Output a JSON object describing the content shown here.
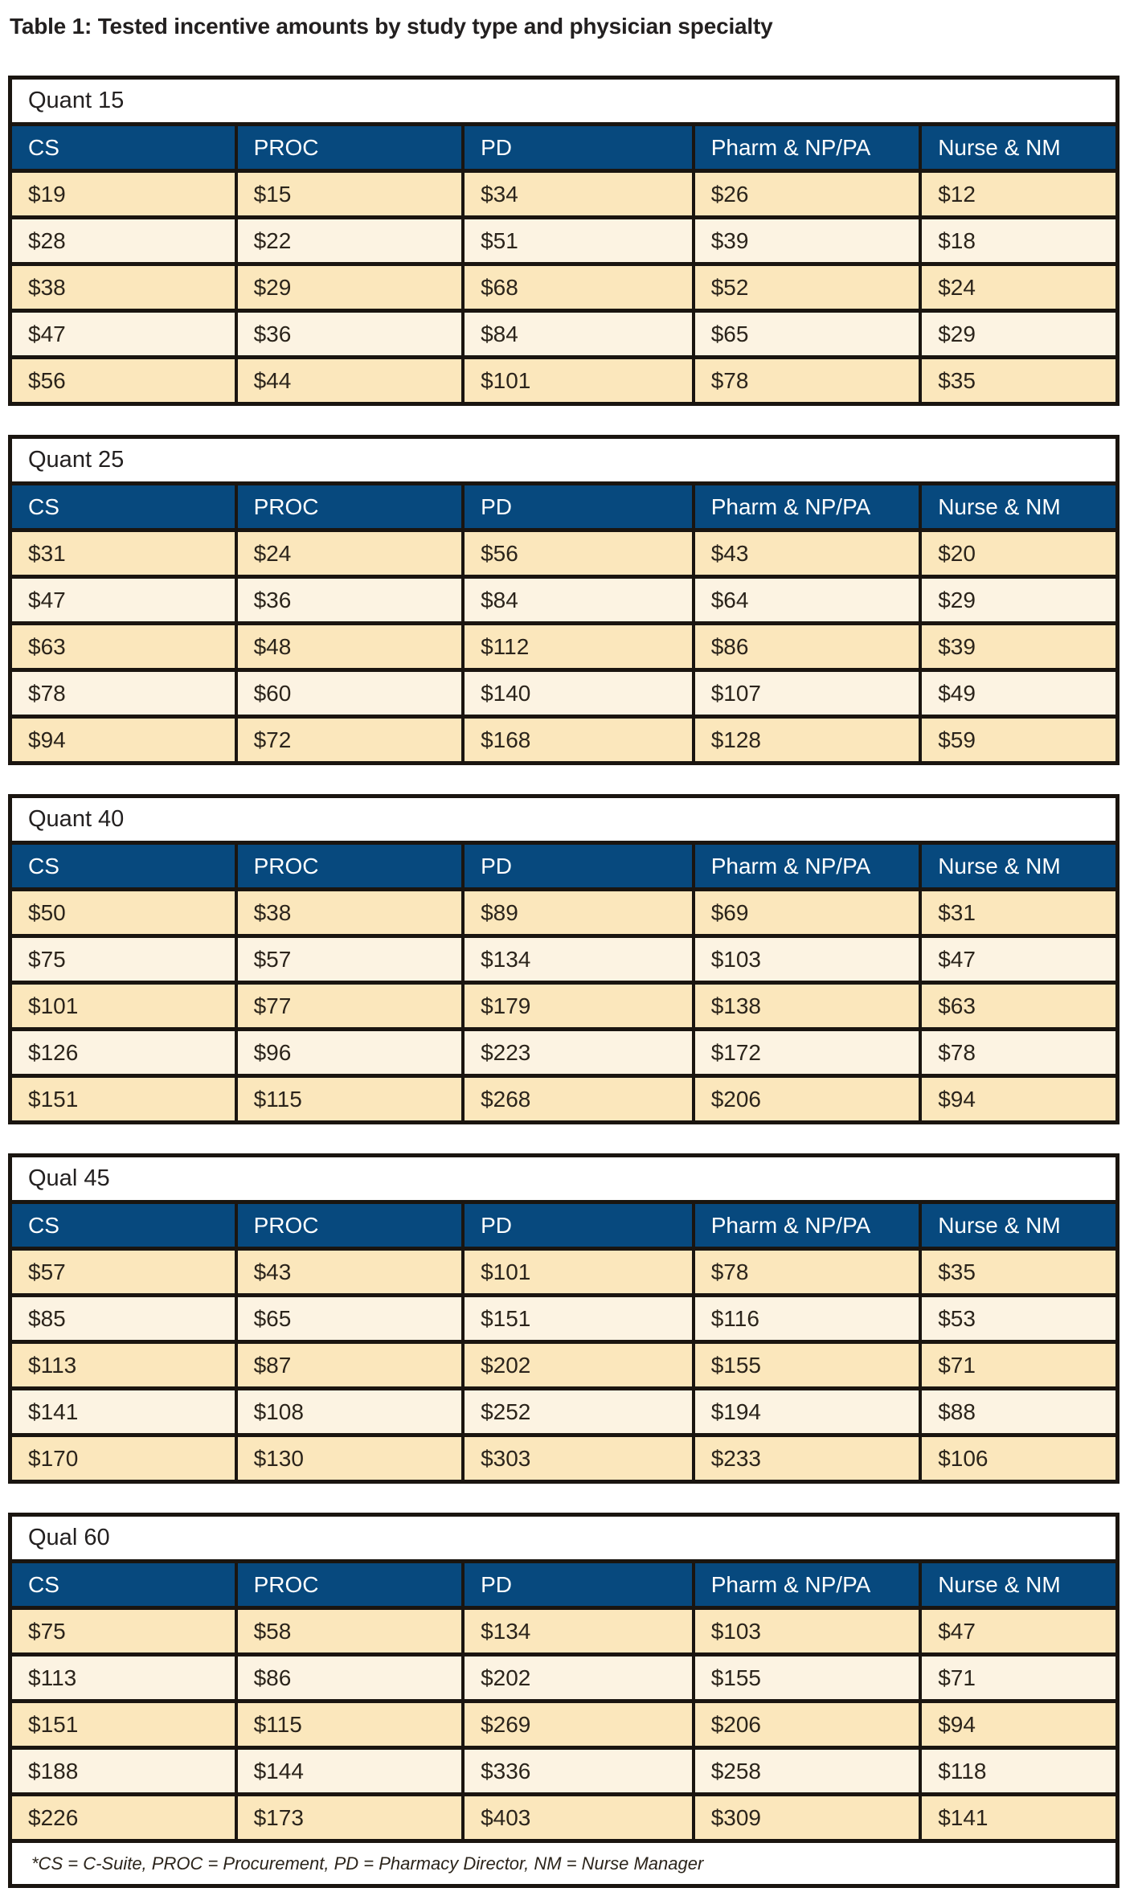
{
  "title": "Table 1: Tested incentive amounts by study type and physician specialty",
  "columns": [
    "CS",
    "PROC",
    "PD",
    "Pharm & NP/PA",
    "Nurse & NM"
  ],
  "tables": [
    {
      "label": "Quant 15",
      "rows": [
        [
          "$19",
          "$15",
          "$34",
          "$26",
          "$12"
        ],
        [
          "$28",
          "$22",
          "$51",
          "$39",
          "$18"
        ],
        [
          "$38",
          "$29",
          "$68",
          "$52",
          "$24"
        ],
        [
          "$47",
          "$36",
          "$84",
          "$65",
          "$29"
        ],
        [
          "$56",
          "$44",
          "$101",
          "$78",
          "$35"
        ]
      ]
    },
    {
      "label": "Quant 25",
      "rows": [
        [
          "$31",
          "$24",
          "$56",
          "$43",
          "$20"
        ],
        [
          "$47",
          "$36",
          "$84",
          "$64",
          "$29"
        ],
        [
          "$63",
          "$48",
          "$112",
          "$86",
          "$39"
        ],
        [
          "$78",
          "$60",
          "$140",
          "$107",
          "$49"
        ],
        [
          "$94",
          "$72",
          "$168",
          "$128",
          "$59"
        ]
      ]
    },
    {
      "label": "Quant 40",
      "rows": [
        [
          "$50",
          "$38",
          "$89",
          "$69",
          "$31"
        ],
        [
          "$75",
          "$57",
          "$134",
          "$103",
          "$47"
        ],
        [
          "$101",
          "$77",
          "$179",
          "$138",
          "$63"
        ],
        [
          "$126",
          "$96",
          "$223",
          "$172",
          "$78"
        ],
        [
          "$151",
          "$115",
          "$268",
          "$206",
          "$94"
        ]
      ]
    },
    {
      "label": "Qual 45",
      "rows": [
        [
          "$57",
          "$43",
          "$101",
          "$78",
          "$35"
        ],
        [
          "$85",
          "$65",
          "$151",
          "$116",
          "$53"
        ],
        [
          "$113",
          "$87",
          "$202",
          "$155",
          "$71"
        ],
        [
          "$141",
          "$108",
          "$252",
          "$194",
          "$88"
        ],
        [
          "$170",
          "$130",
          "$303",
          "$233",
          "$106"
        ]
      ]
    },
    {
      "label": "Qual 60",
      "rows": [
        [
          "$75",
          "$58",
          "$134",
          "$103",
          "$47"
        ],
        [
          "$113",
          "$86",
          "$202",
          "$155",
          "$71"
        ],
        [
          "$151",
          "$115",
          "$269",
          "$206",
          "$94"
        ],
        [
          "$188",
          "$144",
          "$336",
          "$258",
          "$118"
        ],
        [
          "$226",
          "$173",
          "$403",
          "$309",
          "$141"
        ]
      ],
      "footnote": "*CS = C-Suite, PROC = Procurement, PD = Pharmacy Director, NM = Nurse Manager"
    }
  ],
  "colors": {
    "header_blue": "#07497e",
    "row_tan": "#fbe7bc",
    "row_cream": "#fcf3e2",
    "border_black": "#1a1510",
    "data_text": "#2b241b",
    "header_text": "#ffffff",
    "title_text": "#232020"
  }
}
